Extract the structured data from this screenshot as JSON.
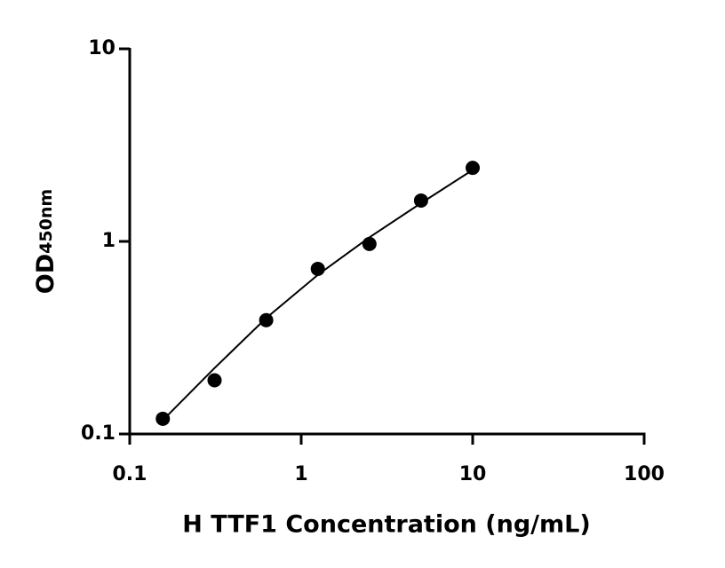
{
  "chart_data": {
    "type": "scatter",
    "xlabel": "H TTF1 Concentration (ng/mL)",
    "ylabel": "OD",
    "ylabel_sub": "450nm",
    "x": [
      0.156,
      0.3125,
      0.625,
      1.25,
      2.5,
      5,
      10
    ],
    "values": [
      0.12,
      0.19,
      0.39,
      0.72,
      0.97,
      1.63,
      2.41
    ],
    "color": "#000000",
    "fit": {
      "x": [
        0.156,
        0.3125,
        0.625,
        1.25,
        2.5,
        5,
        10
      ],
      "values": [
        0.118,
        0.22,
        0.4,
        0.67,
        1.05,
        1.58,
        2.35
      ]
    },
    "xlim": [
      0.1,
      100
    ],
    "ylim": [
      0.1,
      10
    ],
    "xticks": [
      0.1,
      1,
      10,
      100
    ],
    "yticks": [
      0.1,
      1,
      10
    ],
    "xscale": "log",
    "yscale": "log",
    "grid": false
  }
}
